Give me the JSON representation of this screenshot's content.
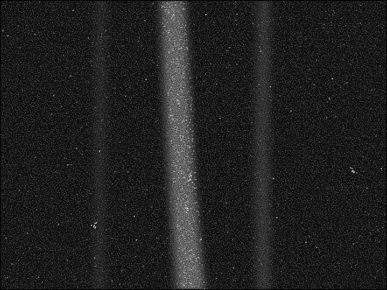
{
  "image": {
    "kind": "grayscale-noise-texture",
    "background_color": "#0d0d0d",
    "speckle_color": "#ffffff",
    "frame_color": "#000000",
    "features": [
      "bright-vertical-band-left-center",
      "faint-vertical-band-right"
    ]
  }
}
